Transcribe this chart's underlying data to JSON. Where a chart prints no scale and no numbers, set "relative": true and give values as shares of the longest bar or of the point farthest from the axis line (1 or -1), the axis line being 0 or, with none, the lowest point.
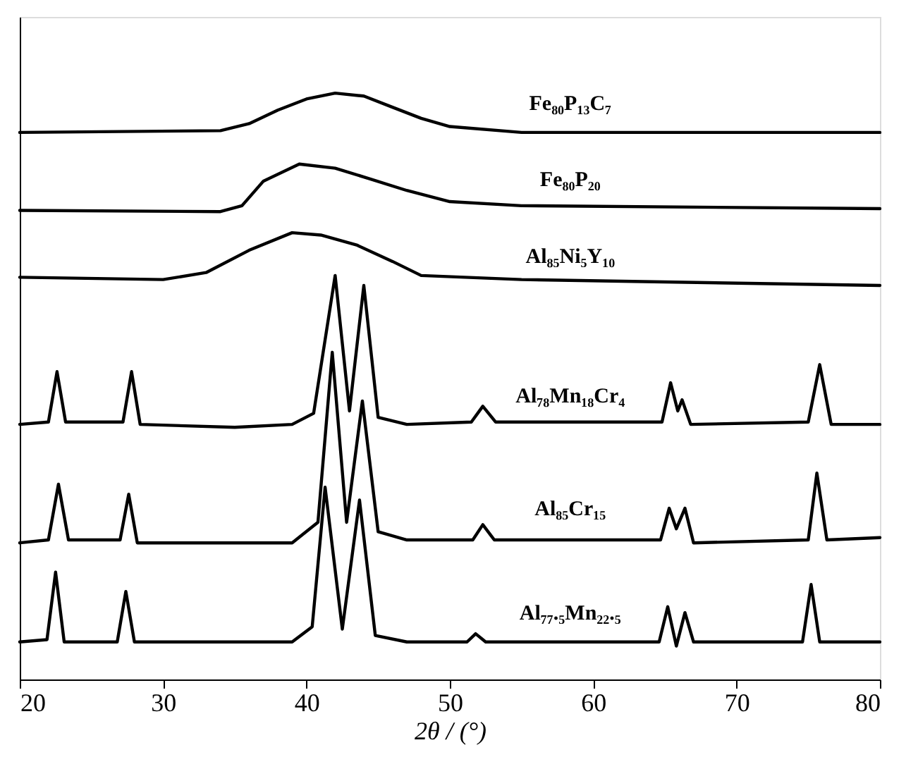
{
  "chart_data": {
    "type": "line",
    "xlabel": "2θ / (°)",
    "xlim": [
      20,
      80
    ],
    "xticks": [
      20,
      30,
      40,
      50,
      60,
      70,
      80
    ],
    "relative": true,
    "grid": false,
    "legend": false,
    "marker": "none",
    "line_style": "solid",
    "series": [
      {
        "name": "Fe₈₀P₁₃C₇",
        "color": "#000000",
        "x": [
          20,
          34,
          36,
          38,
          40,
          42,
          44,
          46,
          48,
          50,
          55,
          80
        ],
        "values": [
          0.933,
          0.936,
          0.948,
          0.971,
          0.99,
          1.0,
          0.995,
          0.976,
          0.957,
          0.943,
          0.933,
          0.933
        ]
      },
      {
        "name": "Fe₈₀P₂₀",
        "color": "#000000",
        "x": [
          20,
          34,
          35.5,
          37,
          39.5,
          42,
          44,
          47,
          50,
          55,
          80
        ],
        "values": [
          0.8,
          0.798,
          0.808,
          0.85,
          0.879,
          0.872,
          0.857,
          0.834,
          0.815,
          0.808,
          0.803
        ]
      },
      {
        "name": "Al₈₅Ni₅Y₁₀",
        "color": "#000000",
        "x": [
          20,
          30,
          33,
          36,
          39,
          41,
          43.5,
          46,
          48,
          55,
          80
        ],
        "values": [
          0.686,
          0.682,
          0.694,
          0.732,
          0.762,
          0.758,
          0.741,
          0.713,
          0.689,
          0.682,
          0.672
        ]
      },
      {
        "name": "Al₇₈Mn₁₈Cr₄",
        "color": "#000000",
        "x": [
          20,
          22,
          22.6,
          23.2,
          27.2,
          27.8,
          28.4,
          35,
          39,
          40.5,
          42,
          43,
          44,
          45,
          47,
          51.5,
          52.3,
          53.2,
          64.8,
          65.4,
          65.9,
          66.2,
          66.8,
          75,
          75.8,
          76.6,
          80
        ],
        "values": [
          0.435,
          0.439,
          0.525,
          0.439,
          0.439,
          0.525,
          0.435,
          0.43,
          0.435,
          0.454,
          0.689,
          0.458,
          0.672,
          0.447,
          0.435,
          0.439,
          0.466,
          0.439,
          0.439,
          0.506,
          0.458,
          0.477,
          0.435,
          0.439,
          0.537,
          0.435,
          0.435
        ]
      },
      {
        "name": "Al₈₅Cr₁₅",
        "color": "#000000",
        "x": [
          20,
          22,
          22.7,
          23.4,
          27,
          27.6,
          28.2,
          39,
          40.8,
          41.8,
          42.8,
          43.9,
          45,
          47,
          51.6,
          52.3,
          53.1,
          64.7,
          65.3,
          65.8,
          66.4,
          67,
          75,
          75.6,
          76.3,
          80
        ],
        "values": [
          0.233,
          0.238,
          0.333,
          0.238,
          0.238,
          0.316,
          0.233,
          0.233,
          0.268,
          0.558,
          0.268,
          0.475,
          0.252,
          0.238,
          0.238,
          0.264,
          0.238,
          0.238,
          0.292,
          0.257,
          0.292,
          0.233,
          0.238,
          0.352,
          0.238,
          0.242
        ]
      },
      {
        "name": "Al₇₇.₅Mn₂₂.₅",
        "color": "#000000",
        "x": [
          20,
          21.9,
          22.5,
          23.1,
          26.8,
          27.4,
          28,
          39,
          40.4,
          41.3,
          42.5,
          43.7,
          44.8,
          47,
          51.2,
          51.8,
          52.5,
          64.6,
          65.2,
          65.8,
          66.4,
          67,
          74.6,
          75.2,
          75.8,
          80
        ],
        "values": [
          0.064,
          0.068,
          0.183,
          0.064,
          0.064,
          0.15,
          0.064,
          0.064,
          0.09,
          0.328,
          0.086,
          0.306,
          0.075,
          0.064,
          0.064,
          0.078,
          0.064,
          0.064,
          0.124,
          0.057,
          0.114,
          0.064,
          0.064,
          0.162,
          0.064,
          0.064
        ]
      }
    ]
  }
}
